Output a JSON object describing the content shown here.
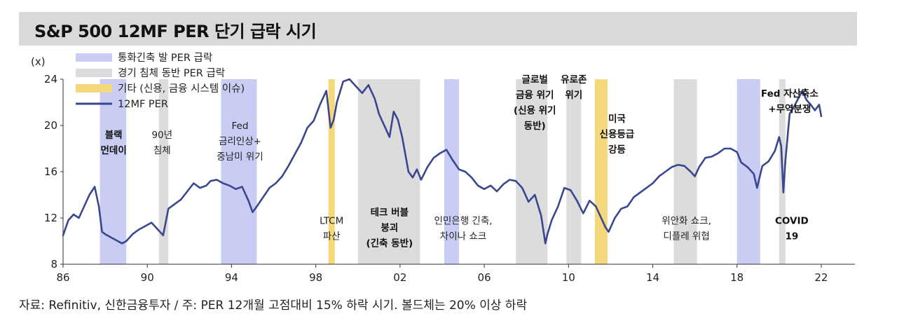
{
  "title": "S&P 500 12MF PER 단기 급락 시기",
  "source": "자료: Refinitiv, 신한금융투자 / 주: PER 12개월 고점대비 15% 하락 시기. 볼드체는 20% 이상 하락",
  "colors": {
    "title_bg": "#d9d9d9",
    "line": "#3a4790",
    "monetary": "#c9cdf3",
    "recession": "#dcdcdc",
    "other": "#f5d77c"
  },
  "chart_data": {
    "type": "line",
    "title": "S&P 500 12MF PER 단기 급락 시기",
    "ylabel": "(x)",
    "xlabel": "",
    "ylim": [
      8,
      24
    ],
    "xlim": [
      1986,
      2023.6
    ],
    "yticks": [
      8,
      12,
      16,
      20,
      24
    ],
    "xticks": [
      1986,
      1990,
      1994,
      1998,
      2002,
      2006,
      2010,
      2014,
      2018,
      2022
    ],
    "xtick_labels": [
      "86",
      "90",
      "94",
      "98",
      "02",
      "06",
      "10",
      "14",
      "18",
      "22"
    ],
    "grid": false,
    "legend_position": "top-left",
    "legend": [
      {
        "key": "monetary",
        "label": "통화긴축 발 PER 급락"
      },
      {
        "key": "recession",
        "label": "경기 침체 동반 PER 급락"
      },
      {
        "key": "other",
        "label": "기타 (신용, 금융 시스템 이슈)"
      },
      {
        "key": "line",
        "label": "12MF PER"
      }
    ],
    "bands": [
      {
        "kind": "monetary",
        "start": 1987.75,
        "end": 1989.0
      },
      {
        "kind": "recession",
        "start": 1990.55,
        "end": 1991.0
      },
      {
        "kind": "monetary",
        "start": 1993.5,
        "end": 1995.2
      },
      {
        "kind": "other",
        "start": 1998.6,
        "end": 1998.9
      },
      {
        "kind": "recession",
        "start": 2000.0,
        "end": 2002.95
      },
      {
        "kind": "monetary",
        "start": 2004.1,
        "end": 2004.8
      },
      {
        "kind": "recession",
        "start": 2007.5,
        "end": 2009.0
      },
      {
        "kind": "recession",
        "start": 2009.9,
        "end": 2010.6
      },
      {
        "kind": "other",
        "start": 2011.25,
        "end": 2011.85
      },
      {
        "kind": "recession",
        "start": 2015.0,
        "end": 2016.1
      },
      {
        "kind": "monetary",
        "start": 2018.0,
        "end": 2019.1
      },
      {
        "kind": "recession",
        "start": 2020.0,
        "end": 2020.3
      }
    ],
    "annotations": [
      {
        "lines": [
          "블랙",
          "먼데이"
        ],
        "x": 1988.4,
        "y": 18.9,
        "bold": true
      },
      {
        "lines": [
          "90년",
          "침체"
        ],
        "x": 1990.7,
        "y": 18.9,
        "bold": false
      },
      {
        "lines": [
          "Fed",
          "금리인상+",
          "중남미 위기"
        ],
        "x": 1994.4,
        "y": 19.7,
        "bold": false
      },
      {
        "lines": [
          "LTCM",
          "파산"
        ],
        "x": 1998.75,
        "y": 11.5,
        "bold": false
      },
      {
        "lines": [
          "테크 버블",
          "붕괴",
          "(긴축 동반)"
        ],
        "x": 2001.5,
        "y": 12.2,
        "bold": true
      },
      {
        "lines": [
          "인민은행 긴축,",
          "차이나 쇼크"
        ],
        "x": 2005.0,
        "y": 11.5,
        "bold": false
      },
      {
        "lines": [
          "글로벌",
          "금융 위기",
          "(신용 위기",
          "동반)"
        ],
        "x": 2008.4,
        "y": 23.7,
        "bold": true
      },
      {
        "lines": [
          "유로존",
          "위기"
        ],
        "x": 2010.25,
        "y": 23.7,
        "bold": true
      },
      {
        "lines": [
          "미국",
          "신용등급",
          "강등"
        ],
        "x": 2012.3,
        "y": 20.3,
        "bold": true
      },
      {
        "lines": [
          "위안화 쇼크,",
          "디플레 위협"
        ],
        "x": 2015.6,
        "y": 11.5,
        "bold": false
      },
      {
        "lines": [
          "Fed 자산축소",
          "+무역분쟁"
        ],
        "x": 2020.5,
        "y": 22.5,
        "bold": true
      },
      {
        "lines": [
          "COVID",
          "19"
        ],
        "x": 2020.6,
        "y": 11.5,
        "bold": true
      }
    ],
    "series": [
      {
        "name": "12MF PER",
        "x": [
          1986.0,
          1986.25,
          1986.5,
          1986.75,
          1987.0,
          1987.25,
          1987.5,
          1987.7,
          1987.85,
          1988.0,
          1988.3,
          1988.6,
          1988.8,
          1989.0,
          1989.3,
          1989.6,
          1989.9,
          1990.2,
          1990.5,
          1990.75,
          1991.0,
          1991.3,
          1991.6,
          1991.9,
          1992.2,
          1992.5,
          1992.8,
          1993.0,
          1993.3,
          1993.6,
          1993.9,
          1994.2,
          1994.5,
          1994.8,
          1995.0,
          1995.2,
          1995.5,
          1995.8,
          1996.1,
          1996.4,
          1996.7,
          1997.0,
          1997.3,
          1997.6,
          1997.9,
          1998.2,
          1998.5,
          1998.7,
          1998.85,
          1999.0,
          1999.3,
          1999.6,
          1999.9,
          2000.2,
          2000.5,
          2000.8,
          2001.0,
          2001.2,
          2001.5,
          2001.7,
          2001.9,
          2002.1,
          2002.4,
          2002.6,
          2002.8,
          2003.0,
          2003.3,
          2003.6,
          2003.9,
          2004.2,
          2004.5,
          2004.8,
          2005.1,
          2005.4,
          2005.7,
          2006.0,
          2006.3,
          2006.6,
          2006.9,
          2007.2,
          2007.5,
          2007.8,
          2008.1,
          2008.4,
          2008.7,
          2008.9,
          2009.0,
          2009.2,
          2009.5,
          2009.8,
          2010.1,
          2010.4,
          2010.7,
          2011.0,
          2011.3,
          2011.6,
          2011.75,
          2011.9,
          2012.2,
          2012.5,
          2012.8,
          2013.1,
          2013.4,
          2013.7,
          2014.0,
          2014.3,
          2014.6,
          2014.9,
          2015.2,
          2015.5,
          2015.8,
          2016.0,
          2016.2,
          2016.5,
          2016.8,
          2017.1,
          2017.4,
          2017.7,
          2018.0,
          2018.2,
          2018.5,
          2018.8,
          2018.95,
          2019.2,
          2019.5,
          2019.8,
          2020.0,
          2020.1,
          2020.2,
          2020.3,
          2020.5,
          2020.7,
          2020.9,
          2021.1,
          2021.3,
          2021.5,
          2021.7,
          2021.9,
          2022.0
        ],
        "values": [
          10.5,
          11.8,
          12.3,
          12.0,
          13.0,
          14.0,
          14.7,
          13.0,
          10.8,
          10.6,
          10.3,
          10.0,
          9.8,
          10.0,
          10.6,
          11.0,
          11.3,
          11.6,
          11.0,
          10.5,
          12.8,
          13.2,
          13.6,
          14.3,
          15.0,
          14.6,
          14.8,
          15.2,
          15.3,
          15.0,
          14.8,
          14.5,
          14.7,
          13.5,
          12.5,
          13.0,
          13.8,
          14.6,
          15.0,
          15.6,
          16.5,
          17.5,
          18.5,
          19.8,
          20.4,
          21.8,
          23.0,
          19.8,
          20.5,
          22.0,
          23.8,
          24.0,
          23.4,
          22.8,
          23.5,
          22.3,
          21.0,
          20.2,
          19.0,
          21.2,
          20.5,
          19.0,
          16.0,
          15.5,
          16.2,
          15.3,
          16.4,
          17.2,
          17.6,
          17.9,
          17.0,
          16.2,
          16.0,
          15.5,
          14.8,
          14.5,
          14.8,
          14.3,
          14.9,
          15.3,
          15.2,
          14.6,
          13.4,
          14.0,
          12.2,
          9.8,
          10.6,
          11.8,
          13.0,
          14.6,
          14.4,
          13.5,
          12.4,
          13.5,
          13.0,
          11.8,
          11.2,
          10.8,
          12.0,
          12.8,
          13.0,
          13.8,
          14.2,
          14.6,
          15.0,
          15.6,
          16.0,
          16.4,
          16.6,
          16.5,
          16.0,
          15.6,
          16.4,
          17.2,
          17.3,
          17.6,
          18.0,
          18.0,
          17.7,
          16.8,
          16.4,
          15.8,
          14.6,
          16.5,
          16.9,
          17.8,
          19.0,
          18.2,
          14.2,
          17.0,
          21.0,
          21.6,
          22.3,
          23.0,
          22.2,
          21.8,
          21.3,
          21.8,
          20.8
        ]
      }
    ]
  }
}
